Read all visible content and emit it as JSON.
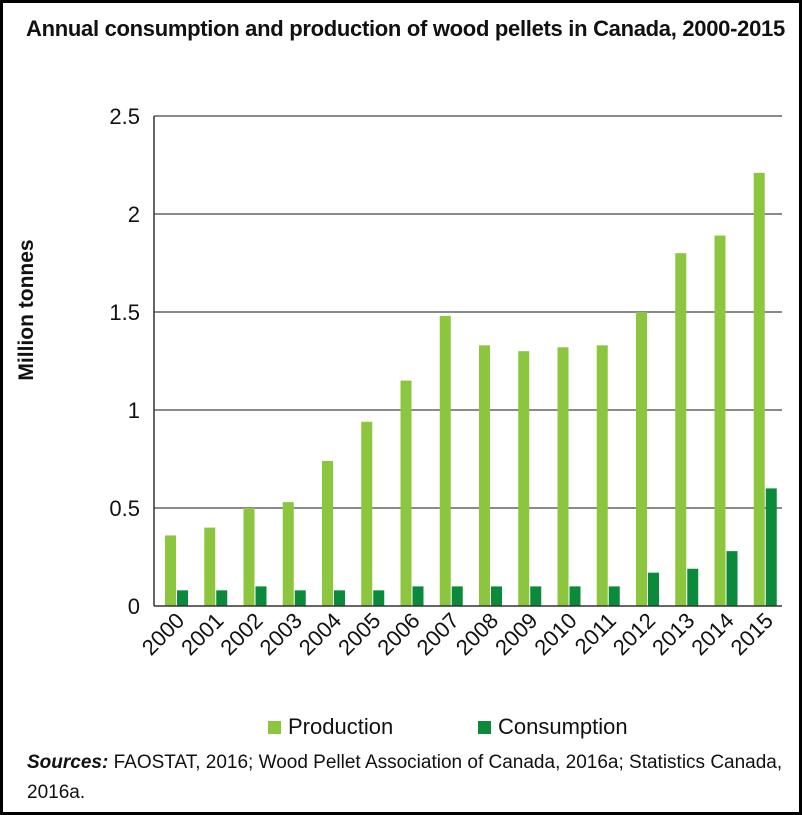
{
  "title": "Annual consumption and production of wood pellets in Canada, 2000-2015",
  "sources_label": "Sources:",
  "sources_text": "FAOSTAT, 2016; Wood Pellet Association of Canada, 2016a; Statistics Canada, 2016a.",
  "chart_data": {
    "type": "bar",
    "title": "Annual consumption and production of wood pellets in Canada, 2000-2015",
    "xlabel": "",
    "ylabel": "Million tonnes",
    "ylim": [
      0,
      2.5
    ],
    "yticks": [
      "0",
      "0.5",
      "1",
      "1.5",
      "2",
      "2.5"
    ],
    "grid": true,
    "legend_position": "bottom",
    "categories": [
      "2000",
      "2001",
      "2002",
      "2003",
      "2004",
      "2005",
      "2006",
      "2007",
      "2008",
      "2009",
      "2010",
      "2011",
      "2012",
      "2013",
      "2014",
      "2015"
    ],
    "series": [
      {
        "name": "Production",
        "color": "#8cc63f",
        "values": [
          0.36,
          0.4,
          0.5,
          0.53,
          0.74,
          0.94,
          1.15,
          1.48,
          1.33,
          1.3,
          1.32,
          1.33,
          1.5,
          1.8,
          1.89,
          2.21
        ]
      },
      {
        "name": "Consumption",
        "color": "#0b8a3c",
        "values": [
          0.08,
          0.08,
          0.1,
          0.08,
          0.08,
          0.08,
          0.1,
          0.1,
          0.1,
          0.1,
          0.1,
          0.1,
          0.17,
          0.19,
          0.28,
          0.6
        ]
      }
    ]
  }
}
